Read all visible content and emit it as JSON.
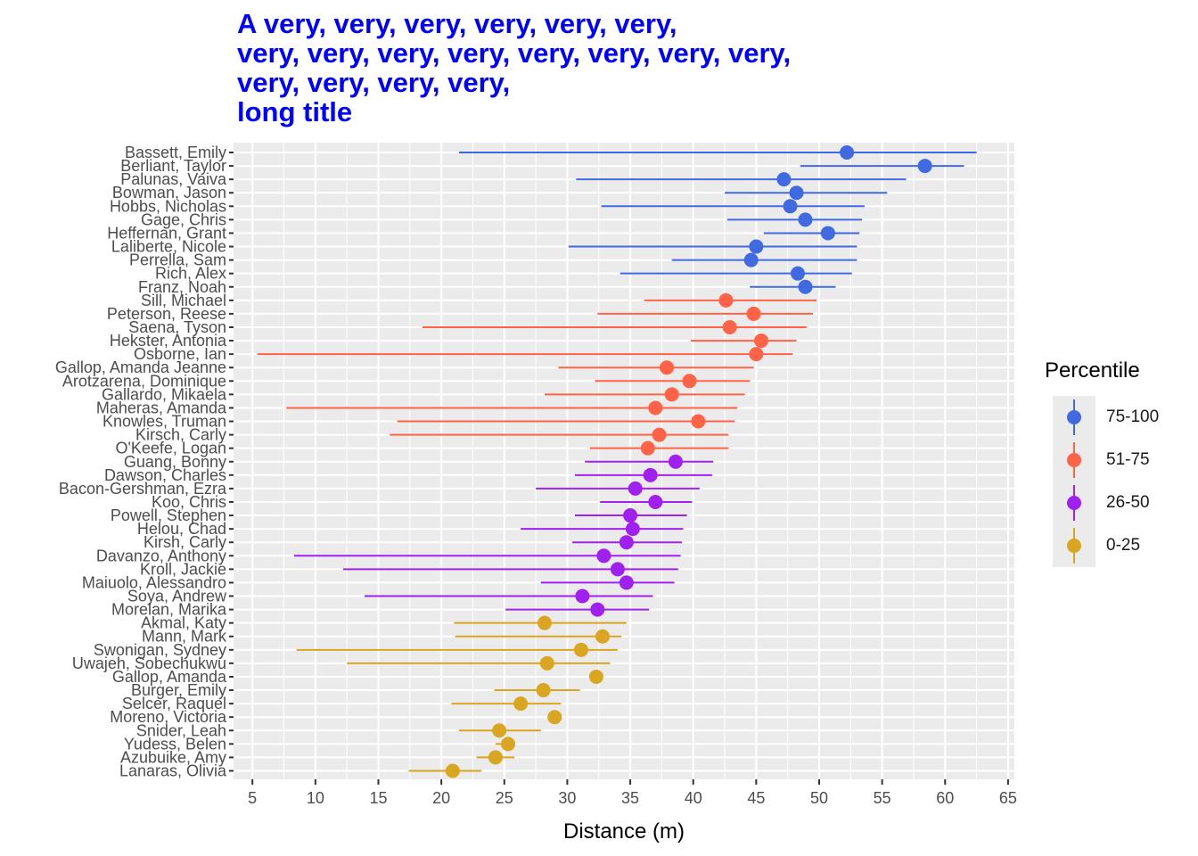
{
  "title_lines": [
    "A very, very, very, very, very, very,",
    "very, very, very, very, very, very, very, very,",
    "very, very, very, very,",
    "long title"
  ],
  "colors": {
    "title": "#0000ff",
    "panel": "#ebebeb",
    "grid": "#ffffff",
    "75-100": "#4169e1",
    "51-75": "#ff6347",
    "26-50": "#a020f0",
    "0-25": "#daa520"
  },
  "legend": {
    "title": "Percentile",
    "items": [
      {
        "label": "75-100",
        "color": "#4169e1"
      },
      {
        "label": "51-75",
        "color": "#ff6347"
      },
      {
        "label": "26-50",
        "color": "#a020f0"
      },
      {
        "label": "0-25",
        "color": "#daa520"
      }
    ]
  },
  "chart_data": {
    "type": "scatter",
    "title": "A very, very, very, very, very, very, very, very, very, very, very, very, very, very, very, very, very, very, long title",
    "xlabel": "Distance (m)",
    "ylabel": "",
    "xlim": [
      3.5,
      65.5
    ],
    "xticks": [
      5,
      10,
      15,
      20,
      25,
      30,
      35,
      40,
      45,
      50,
      55,
      60,
      65
    ],
    "grid": true,
    "legend_position": "right",
    "points": [
      {
        "name": "Bassett, Emily",
        "x": 52.2,
        "lo": 21.4,
        "hi": 62.5,
        "group": "75-100"
      },
      {
        "name": "Berliant, Taylor",
        "x": 58.4,
        "lo": 48.5,
        "hi": 61.5,
        "group": "75-100"
      },
      {
        "name": "Palunas, Vaiva",
        "x": 47.2,
        "lo": 30.7,
        "hi": 56.9,
        "group": "75-100"
      },
      {
        "name": "Bowman, Jason",
        "x": 48.2,
        "lo": 42.5,
        "hi": 55.4,
        "group": "75-100"
      },
      {
        "name": "Hobbs, Nicholas",
        "x": 47.7,
        "lo": 32.7,
        "hi": 53.6,
        "group": "75-100"
      },
      {
        "name": "Gage, Chris",
        "x": 48.9,
        "lo": 42.7,
        "hi": 53.4,
        "group": "75-100"
      },
      {
        "name": "Heffernan, Grant",
        "x": 50.7,
        "lo": 45.6,
        "hi": 53.2,
        "group": "75-100"
      },
      {
        "name": "Laliberte, Nicole",
        "x": 45.0,
        "lo": 30.1,
        "hi": 53.0,
        "group": "75-100"
      },
      {
        "name": "Perrella, Sam",
        "x": 44.6,
        "lo": 38.3,
        "hi": 53.0,
        "group": "75-100"
      },
      {
        "name": "Rich, Alex",
        "x": 48.3,
        "lo": 34.2,
        "hi": 52.6,
        "group": "75-100"
      },
      {
        "name": "Franz, Noah",
        "x": 48.9,
        "lo": 44.5,
        "hi": 51.3,
        "group": "75-100"
      },
      {
        "name": "Sill, Michael",
        "x": 42.6,
        "lo": 36.1,
        "hi": 49.8,
        "group": "51-75"
      },
      {
        "name": "Peterson, Reese",
        "x": 44.8,
        "lo": 32.4,
        "hi": 49.5,
        "group": "51-75"
      },
      {
        "name": "Saena, Tyson",
        "x": 42.9,
        "lo": 18.5,
        "hi": 49.0,
        "group": "51-75"
      },
      {
        "name": "Hekster, Antonia",
        "x": 45.4,
        "lo": 39.8,
        "hi": 48.2,
        "group": "51-75"
      },
      {
        "name": "Osborne, Ian",
        "x": 45.0,
        "lo": 5.4,
        "hi": 47.9,
        "group": "51-75"
      },
      {
        "name": "Gallop, Amanda Jeanne",
        "x": 37.9,
        "lo": 29.3,
        "hi": 44.8,
        "group": "51-75"
      },
      {
        "name": "Arotzarena, Dominique",
        "x": 39.7,
        "lo": 32.2,
        "hi": 44.5,
        "group": "51-75"
      },
      {
        "name": "Gallardo, Mikaela",
        "x": 38.3,
        "lo": 28.2,
        "hi": 44.1,
        "group": "51-75"
      },
      {
        "name": "Maheras, Amanda",
        "x": 37.0,
        "lo": 7.7,
        "hi": 43.5,
        "group": "51-75"
      },
      {
        "name": "Knowles, Truman",
        "x": 40.4,
        "lo": 16.5,
        "hi": 43.3,
        "group": "51-75"
      },
      {
        "name": "Kirsch, Carly",
        "x": 37.3,
        "lo": 15.9,
        "hi": 42.8,
        "group": "51-75"
      },
      {
        "name": "O'Keefe, Logan",
        "x": 36.4,
        "lo": 31.8,
        "hi": 42.8,
        "group": "51-75"
      },
      {
        "name": "Guang, Bonny",
        "x": 38.6,
        "lo": 31.4,
        "hi": 41.6,
        "group": "26-50"
      },
      {
        "name": "Dawson, Charles",
        "x": 36.6,
        "lo": 30.6,
        "hi": 41.5,
        "group": "26-50"
      },
      {
        "name": "Bacon-Gershman, Ezra",
        "x": 35.4,
        "lo": 27.5,
        "hi": 40.5,
        "group": "26-50"
      },
      {
        "name": "Koo, Chris",
        "x": 37.0,
        "lo": 32.6,
        "hi": 39.9,
        "group": "26-50"
      },
      {
        "name": "Powell, Stephen",
        "x": 35.0,
        "lo": 30.6,
        "hi": 39.5,
        "group": "26-50"
      },
      {
        "name": "Helou, Chad",
        "x": 35.2,
        "lo": 26.3,
        "hi": 39.2,
        "group": "26-50"
      },
      {
        "name": "Kirsh, Carly",
        "x": 34.7,
        "lo": 30.4,
        "hi": 39.1,
        "group": "26-50"
      },
      {
        "name": "Davanzo, Anthony",
        "x": 32.9,
        "lo": 8.3,
        "hi": 39.0,
        "group": "26-50"
      },
      {
        "name": "Kroll, Jackie",
        "x": 34.0,
        "lo": 12.2,
        "hi": 38.8,
        "group": "26-50"
      },
      {
        "name": "Maiuolo, Alessandro",
        "x": 34.7,
        "lo": 27.9,
        "hi": 38.5,
        "group": "26-50"
      },
      {
        "name": "Soya, Andrew",
        "x": 31.2,
        "lo": 13.9,
        "hi": 36.8,
        "group": "26-50"
      },
      {
        "name": "Morelan, Marika",
        "x": 32.4,
        "lo": 25.1,
        "hi": 36.5,
        "group": "26-50"
      },
      {
        "name": "Akmal, Katy",
        "x": 28.2,
        "lo": 21.0,
        "hi": 34.7,
        "group": "0-25"
      },
      {
        "name": "Mann, Mark",
        "x": 32.8,
        "lo": 21.1,
        "hi": 34.3,
        "group": "0-25"
      },
      {
        "name": "Swonigan, Sydney",
        "x": 31.1,
        "lo": 8.5,
        "hi": 34.0,
        "group": "0-25"
      },
      {
        "name": "Uwajeh, Sobechukwu",
        "x": 28.4,
        "lo": 12.5,
        "hi": 33.4,
        "group": "0-25"
      },
      {
        "name": "Gallop, Amanda",
        "x": 32.3,
        "lo": 32.3,
        "hi": 32.3,
        "group": "0-25"
      },
      {
        "name": "Burger, Emily",
        "x": 28.1,
        "lo": 24.2,
        "hi": 31.0,
        "group": "0-25"
      },
      {
        "name": "Selcer, Raquel",
        "x": 26.3,
        "lo": 20.8,
        "hi": 29.5,
        "group": "0-25"
      },
      {
        "name": "Moreno, Victoria",
        "x": 29.0,
        "lo": 29.0,
        "hi": 29.0,
        "group": "0-25"
      },
      {
        "name": "Snider, Leah",
        "x": 24.6,
        "lo": 21.4,
        "hi": 27.9,
        "group": "0-25"
      },
      {
        "name": "Yudess, Belen",
        "x": 25.3,
        "lo": 24.3,
        "hi": 25.3,
        "group": "0-25"
      },
      {
        "name": "Azubuike, Amy",
        "x": 24.3,
        "lo": 22.8,
        "hi": 25.8,
        "group": "0-25"
      },
      {
        "name": "Lanaras, Olivia",
        "x": 20.9,
        "lo": 17.4,
        "hi": 23.2,
        "group": "0-25"
      }
    ]
  }
}
